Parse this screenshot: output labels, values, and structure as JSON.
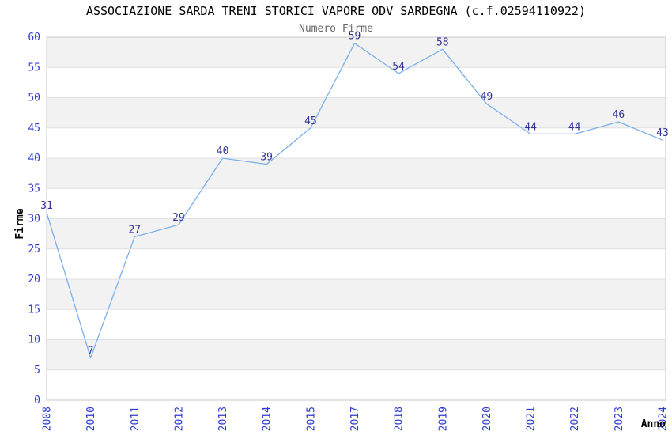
{
  "chart_data": {
    "type": "line",
    "title": "ASSOCIAZIONE SARDA TRENI STORICI VAPORE ODV SARDEGNA (c.f.02594110922)",
    "subtitle": "Numero Firme",
    "xlabel": "Anno",
    "ylabel": "Firme",
    "categories": [
      "2008",
      "2010",
      "2011",
      "2012",
      "2013",
      "2014",
      "2015",
      "2017",
      "2018",
      "2019",
      "2020",
      "2021",
      "2022",
      "2023",
      "2024"
    ],
    "values": [
      31,
      7,
      27,
      29,
      40,
      39,
      45,
      59,
      54,
      58,
      49,
      44,
      44,
      46,
      43
    ],
    "ylim": [
      0,
      60
    ],
    "ytick_step": 5,
    "grid": "horizontal-gridlines-with-alternating-bands",
    "legend": "none",
    "data_labels_shown": true,
    "x_tick_rotation_degrees": 90,
    "colors": {
      "background": "#ffffff",
      "band": "#f2f2f2",
      "grid_line": "#e0e0e0",
      "frame": "#c8c8c8",
      "line": "#7cb0e8",
      "data_label": "#333399",
      "tick_label": "#2e3bd3",
      "title": "#000000",
      "subtitle": "#666666",
      "axis_label": "#000000"
    }
  }
}
